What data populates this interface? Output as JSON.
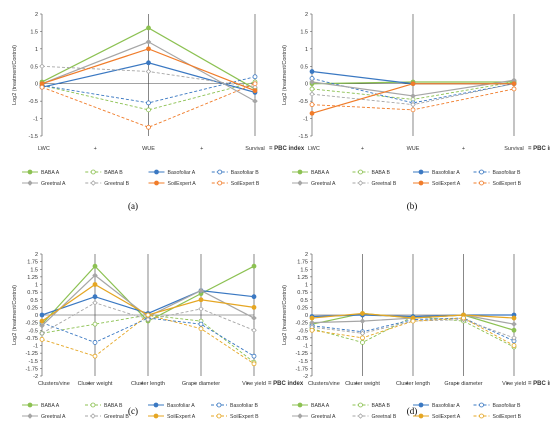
{
  "colors": {
    "BABA": "#8cc152",
    "Basofoliar": "#3a78c2",
    "Greetnal": "#a6a6a6",
    "SoilExpert": "#f07c2a",
    "SoilExpertPanelCD": "#e5a623"
  },
  "ylabel": "Log2 (treatment/Control)",
  "operator_plus": "+",
  "index_suffix": "= PBC index",
  "chart_data": [
    {
      "id": "a",
      "type": "line",
      "panel_label": "(a)",
      "categories": [
        "LWC",
        "WUE",
        "Survival"
      ],
      "x_tick_labels": [
        "LWC",
        "WUE",
        "Survival"
      ],
      "ylim": [
        -1.5,
        2
      ],
      "yticks": [
        "2",
        "1.5",
        "1",
        "0.5",
        "0",
        "-0.5",
        "-1",
        "-1.5"
      ],
      "grid": false,
      "legend_position": "bottom",
      "series": [
        {
          "name": "BABA A",
          "values": [
            0.05,
            1.6,
            -0.15
          ]
        },
        {
          "name": "BABA B",
          "values": [
            -0.05,
            -0.75,
            0.05
          ]
        },
        {
          "name": "Basofoliar A",
          "values": [
            -0.1,
            0.6,
            -0.25
          ]
        },
        {
          "name": "Basofoliar B",
          "values": [
            -0.05,
            -0.55,
            0.2
          ]
        },
        {
          "name": "Greetnal A",
          "values": [
            0.0,
            1.2,
            -0.5
          ]
        },
        {
          "name": "Greetnal B",
          "values": [
            0.5,
            0.35,
            -0.1
          ]
        },
        {
          "name": "SoilExpert A",
          "values": [
            0.0,
            1.0,
            -0.2
          ]
        },
        {
          "name": "SoilExpert B",
          "values": [
            -0.1,
            -1.25,
            0.0
          ]
        }
      ]
    },
    {
      "id": "b",
      "type": "line",
      "panel_label": "(b)",
      "categories": [
        "LWC",
        "WUE",
        "Survival"
      ],
      "x_tick_labels": [
        "LWC",
        "WUE",
        "Survival"
      ],
      "ylim": [
        -1.5,
        2
      ],
      "yticks": [
        "2",
        "1.5",
        "1",
        "0.5",
        "0",
        "-0.5",
        "-1",
        "-1.5"
      ],
      "grid": false,
      "legend_position": "bottom",
      "series": [
        {
          "name": "BABA A",
          "values": [
            0.0,
            0.05,
            0.05
          ]
        },
        {
          "name": "BABA B",
          "values": [
            -0.15,
            -0.45,
            0.05
          ]
        },
        {
          "name": "Basofoliar A",
          "values": [
            0.35,
            0.0,
            0.0
          ]
        },
        {
          "name": "Basofoliar B",
          "values": [
            0.15,
            -0.55,
            0.0
          ]
        },
        {
          "name": "Greetnal A",
          "values": [
            0.05,
            -0.35,
            0.1
          ]
        },
        {
          "name": "Greetnal B",
          "values": [
            -0.3,
            -0.6,
            0.0
          ]
        },
        {
          "name": "SoilExpert A",
          "values": [
            -0.85,
            0.0,
            0.0
          ]
        },
        {
          "name": "SoilExpert B",
          "values": [
            -0.6,
            -0.75,
            -0.15
          ]
        }
      ]
    },
    {
      "id": "c",
      "type": "line",
      "panel_label": "(c)",
      "categories": [
        "Clusters/vine",
        "Cluster weight",
        "Cluster length",
        "Grape diameter",
        "Vine yield"
      ],
      "x_tick_labels": [
        "Clusters/vine",
        "Cluster weight",
        "Cluster length",
        "Grape diameter",
        "Vine yield"
      ],
      "ylim": [
        -2,
        2
      ],
      "yticks": [
        "2",
        "1.75",
        "1.5",
        "1.25",
        "1",
        "0.75",
        "0.5",
        "0.25",
        "0",
        "-0.25",
        "-0.5",
        "-0.75",
        "-1",
        "-1.25",
        "-1.5",
        "-1.75",
        "-2"
      ],
      "grid": false,
      "legend_position": "bottom",
      "series": [
        {
          "name": "BABA A",
          "values": [
            -0.3,
            1.6,
            -0.2,
            0.7,
            1.6
          ]
        },
        {
          "name": "BABA B",
          "values": [
            -0.6,
            -0.3,
            0.0,
            -0.2,
            -1.55
          ]
        },
        {
          "name": "Basofoliar A",
          "values": [
            0.0,
            0.6,
            0.05,
            0.8,
            0.6
          ]
        },
        {
          "name": "Basofoliar B",
          "values": [
            -0.25,
            -0.9,
            -0.1,
            -0.3,
            -1.35
          ]
        },
        {
          "name": "Greetnal A",
          "values": [
            -0.35,
            1.3,
            -0.05,
            0.8,
            -0.1
          ]
        },
        {
          "name": "Greetnal B",
          "values": [
            -0.6,
            0.4,
            -0.15,
            0.2,
            -0.5
          ]
        },
        {
          "name": "SoilExpert A",
          "values": [
            -0.2,
            1.0,
            0.0,
            0.5,
            0.25
          ]
        },
        {
          "name": "SoilExpert B",
          "values": [
            -0.8,
            -1.35,
            0.0,
            -0.45,
            -1.6
          ]
        }
      ]
    },
    {
      "id": "d",
      "type": "line",
      "panel_label": "(d)",
      "categories": [
        "Clusters/vine",
        "Cluster weight",
        "Cluster length",
        "Grape diameter",
        "Vine yield"
      ],
      "x_tick_labels": [
        "Clusters/vine",
        "Cluster weight",
        "Cluster length",
        "Grape diameter",
        "Vine yield"
      ],
      "ylim": [
        -2,
        2
      ],
      "yticks": [
        "2",
        "1.75",
        "1.5",
        "1.25",
        "1",
        "0.75",
        "0.5",
        "0.25",
        "0",
        "-0.25",
        "-0.5",
        "-0.75",
        "-1",
        "-1.25",
        "-1.5",
        "-1.75",
        "-2"
      ],
      "grid": false,
      "legend_position": "bottom",
      "series": [
        {
          "name": "BABA A",
          "values": [
            -0.3,
            0.05,
            -0.1,
            0.0,
            -0.5
          ]
        },
        {
          "name": "BABA B",
          "values": [
            -0.45,
            -0.9,
            -0.05,
            -0.2,
            -1.05
          ]
        },
        {
          "name": "Basofoliar A",
          "values": [
            -0.05,
            0.0,
            -0.05,
            0.0,
            0.0
          ]
        },
        {
          "name": "Basofoliar B",
          "values": [
            -0.35,
            -0.55,
            -0.15,
            -0.1,
            -0.85
          ]
        },
        {
          "name": "Greetnal A",
          "values": [
            -0.25,
            -0.2,
            -0.1,
            0.0,
            -0.3
          ]
        },
        {
          "name": "Greetnal B",
          "values": [
            -0.4,
            -0.6,
            -0.2,
            -0.15,
            -0.75
          ]
        },
        {
          "name": "SoilExpert A",
          "values": [
            -0.1,
            0.05,
            -0.1,
            0.0,
            -0.1
          ]
        },
        {
          "name": "SoilExpert B",
          "values": [
            -0.5,
            -0.75,
            -0.2,
            -0.1,
            -1.0
          ]
        }
      ]
    }
  ]
}
